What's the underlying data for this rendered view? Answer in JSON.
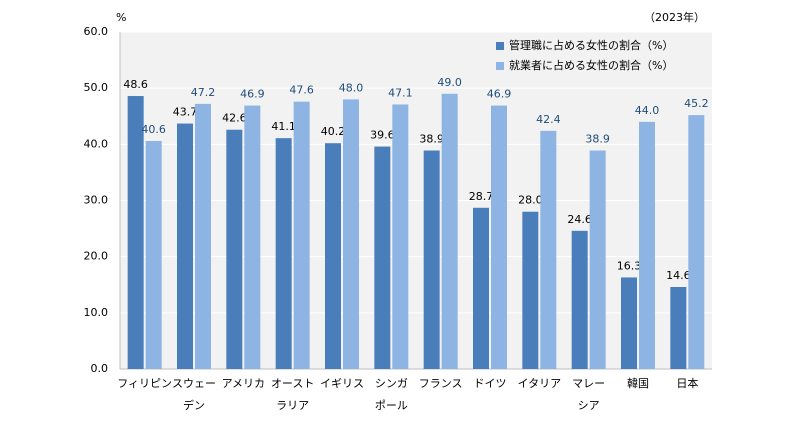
{
  "chart_data": {
    "type": "bar",
    "unit_label": "%",
    "annotation": "（2023年）",
    "categories": [
      "フィリピン",
      "スウェー\nデン",
      "アメリカ",
      "オースト\nラリア",
      "イギリス",
      "シンガ\nポール",
      "フランス",
      "ドイツ",
      "イタリア",
      "マレー\nシア",
      "韓国",
      "日本"
    ],
    "series": [
      {
        "name": "管理職に占める女性の割合（%）",
        "color": "#4a7ebb",
        "label_color": "#000000",
        "values": [
          48.6,
          43.7,
          42.6,
          41.1,
          40.2,
          39.6,
          38.9,
          28.7,
          28.0,
          24.6,
          16.3,
          14.6
        ],
        "value_labels": [
          "48.6",
          "43.7",
          "42.6",
          "41.1",
          "40.2",
          "39.6",
          "38.9",
          "28.7",
          "28.0",
          "24.6",
          "16.3",
          "14.6"
        ]
      },
      {
        "name": "就業者に占める女性の割合（%）",
        "color": "#8db4e2",
        "label_color": "#1f4e79",
        "values": [
          40.6,
          47.2,
          46.9,
          47.6,
          48.0,
          47.1,
          49.0,
          46.9,
          42.4,
          38.9,
          44.0,
          45.2
        ],
        "value_labels": [
          "40.6",
          "47.2",
          "46.9",
          "47.6",
          "48.0",
          "47.1",
          "49.0",
          "46.9",
          "42.4",
          "38.9",
          "44.0",
          "45.2"
        ]
      }
    ],
    "ylim": [
      0,
      60
    ],
    "yticks": [
      {
        "value": 0,
        "label": "0.0"
      },
      {
        "value": 10,
        "label": "10.0"
      },
      {
        "value": 20,
        "label": "20.0"
      },
      {
        "value": 30,
        "label": "30.0"
      },
      {
        "value": 40,
        "label": "40.0"
      },
      {
        "value": 50,
        "label": "50.0"
      },
      {
        "value": 60,
        "label": "60.0"
      }
    ],
    "grid": true,
    "legend": "top-right"
  }
}
